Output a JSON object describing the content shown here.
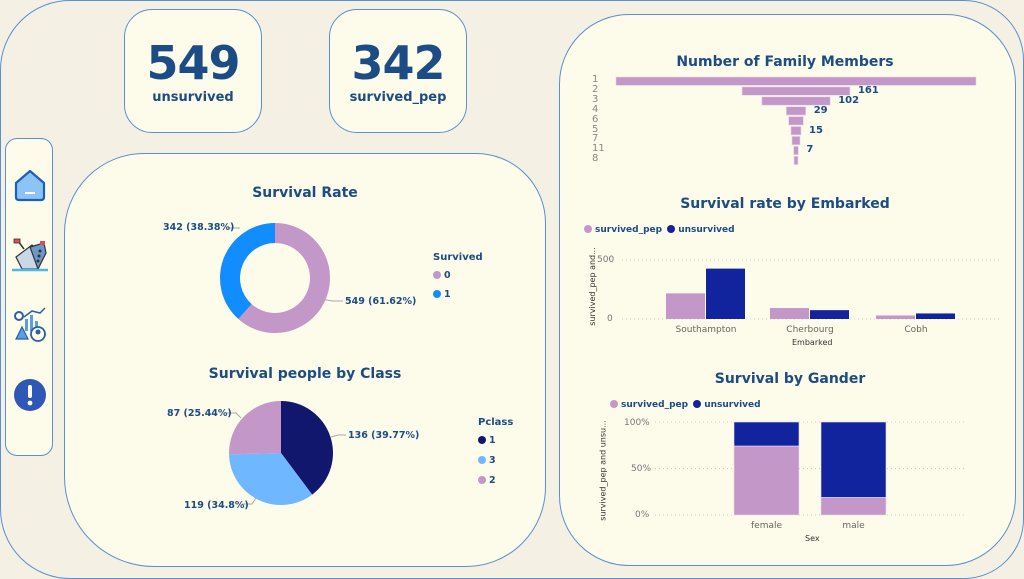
{
  "kpis": [
    {
      "value": "549",
      "label": "unsurvived"
    },
    {
      "value": "342",
      "label": "survived_pep"
    }
  ],
  "nav": [
    {
      "icon": "home-icon",
      "label": "Home"
    },
    {
      "icon": "sinking-ship-icon",
      "label": "Titanic"
    },
    {
      "icon": "analytics-icon",
      "label": "Analytics"
    },
    {
      "icon": "info-icon",
      "label": "Info"
    }
  ],
  "colors": {
    "accent": "#1b4c86",
    "survived_pep": "#c497c9",
    "unsurvived": "#12239e",
    "survived_1": "#118dff",
    "class_1": "#12176e",
    "class_3": "#6fb7ff",
    "class_2": "#c497c9",
    "panel_bg": "#fdfbe9",
    "page_bg": "#f4f1e4",
    "border": "#5b8fcf"
  },
  "chart_data": [
    {
      "id": "survival_rate",
      "type": "pie",
      "donut": true,
      "title": "Survival Rate",
      "legend_title": "Survived",
      "legend_position": "right",
      "slices": [
        {
          "label": "0",
          "value": 549,
          "pct": "61.62%",
          "data_label": "549 (61.62%)"
        },
        {
          "label": "1",
          "value": 342,
          "pct": "38.38%",
          "data_label": "342 (38.38%)"
        }
      ]
    },
    {
      "id": "survival_by_class",
      "type": "pie",
      "donut": false,
      "title": "Survival people by Class",
      "legend_title": "Pclass",
      "legend_position": "right",
      "slices": [
        {
          "label": "1",
          "value": 136,
          "pct": "39.77%",
          "data_label": "136 (39.77%)"
        },
        {
          "label": "3",
          "value": 119,
          "pct": "34.8%",
          "data_label": "119 (34.8%)"
        },
        {
          "label": "2",
          "value": 87,
          "pct": "25.44%",
          "data_label": "87 (25.44%)"
        }
      ]
    },
    {
      "id": "family_members",
      "type": "bar",
      "orientation": "funnel",
      "title": "Number of Family Members",
      "categories": [
        "1",
        "2",
        "3",
        "4",
        "6",
        "5",
        "7",
        "11",
        "8"
      ],
      "values": [
        537,
        161,
        102,
        29,
        22,
        15,
        12,
        7,
        6
      ],
      "data_labels": [
        "",
        "161",
        "102",
        "29",
        "",
        "15",
        "",
        "7",
        ""
      ]
    },
    {
      "id": "survival_by_embarked",
      "type": "bar",
      "title": "Survival rate by Embarked",
      "xlabel": "Embarked",
      "ylabel": "survived_pep and...",
      "ylim": [
        0,
        500
      ],
      "yticks": [
        "0",
        "500"
      ],
      "legend_position": "top-left",
      "categories": [
        "Southampton",
        "Cherbourg",
        "Cobh"
      ],
      "series": [
        {
          "name": "survived_pep",
          "values": [
            217,
            93,
            30
          ]
        },
        {
          "name": "unsurvived",
          "values": [
            427,
            75,
            47
          ]
        }
      ]
    },
    {
      "id": "survival_by_gender",
      "type": "bar",
      "stacked": "100%",
      "title": "Survival by Gander",
      "xlabel": "Sex",
      "ylabel": "survived_pep and unsu...",
      "ylim": [
        0,
        100
      ],
      "yticks": [
        "0%",
        "50%",
        "100%"
      ],
      "legend_position": "top-left",
      "categories": [
        "female",
        "male"
      ],
      "series": [
        {
          "name": "survived_pep",
          "values": [
            74.2,
            18.9
          ]
        },
        {
          "name": "unsurvived",
          "values": [
            25.8,
            81.1
          ]
        }
      ]
    }
  ]
}
